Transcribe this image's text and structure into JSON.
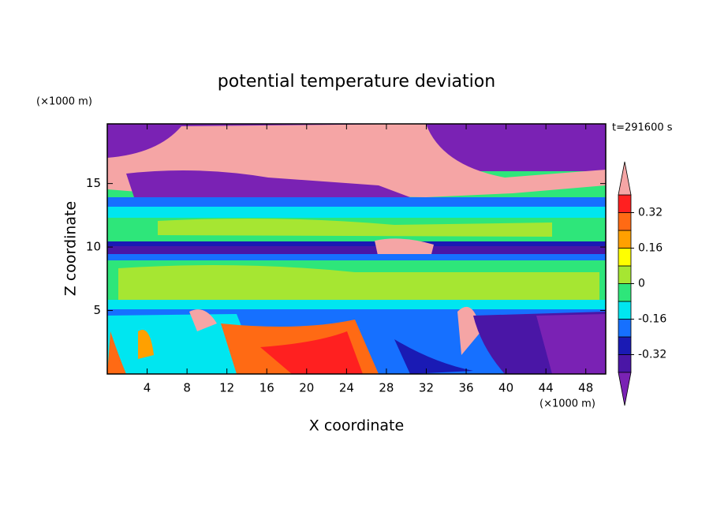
{
  "chart_data": {
    "type": "contour",
    "title": "potential temperature deviation",
    "xlabel": "X coordinate",
    "ylabel": "Z coordinate",
    "xunit": "(×1000 m)",
    "yunit": "(×1000 m)",
    "annotation": "t=291600 s",
    "xlim": [
      0,
      50
    ],
    "xticks": [
      4,
      8,
      12,
      16,
      20,
      24,
      28,
      32,
      36,
      40,
      44,
      48
    ],
    "ylim": [
      0,
      19.7
    ],
    "yticks": [
      5,
      10,
      15
    ],
    "colorbar": {
      "levels": [
        -0.4,
        -0.32,
        -0.24,
        -0.16,
        -0.08,
        0,
        0.08,
        0.16,
        0.24,
        0.32,
        0.4
      ],
      "colors": [
        "#7a22b4",
        "#4a16a6",
        "#1a1ab4",
        "#1670ff",
        "#00e6f0",
        "#2ee67a",
        "#a6e632",
        "#ffff00",
        "#ffa000",
        "#ff6a14",
        "#ff2020",
        "#f5a5a5"
      ],
      "ticks": [
        -0.32,
        -0.16,
        0,
        0.16,
        0.32
      ]
    }
  }
}
